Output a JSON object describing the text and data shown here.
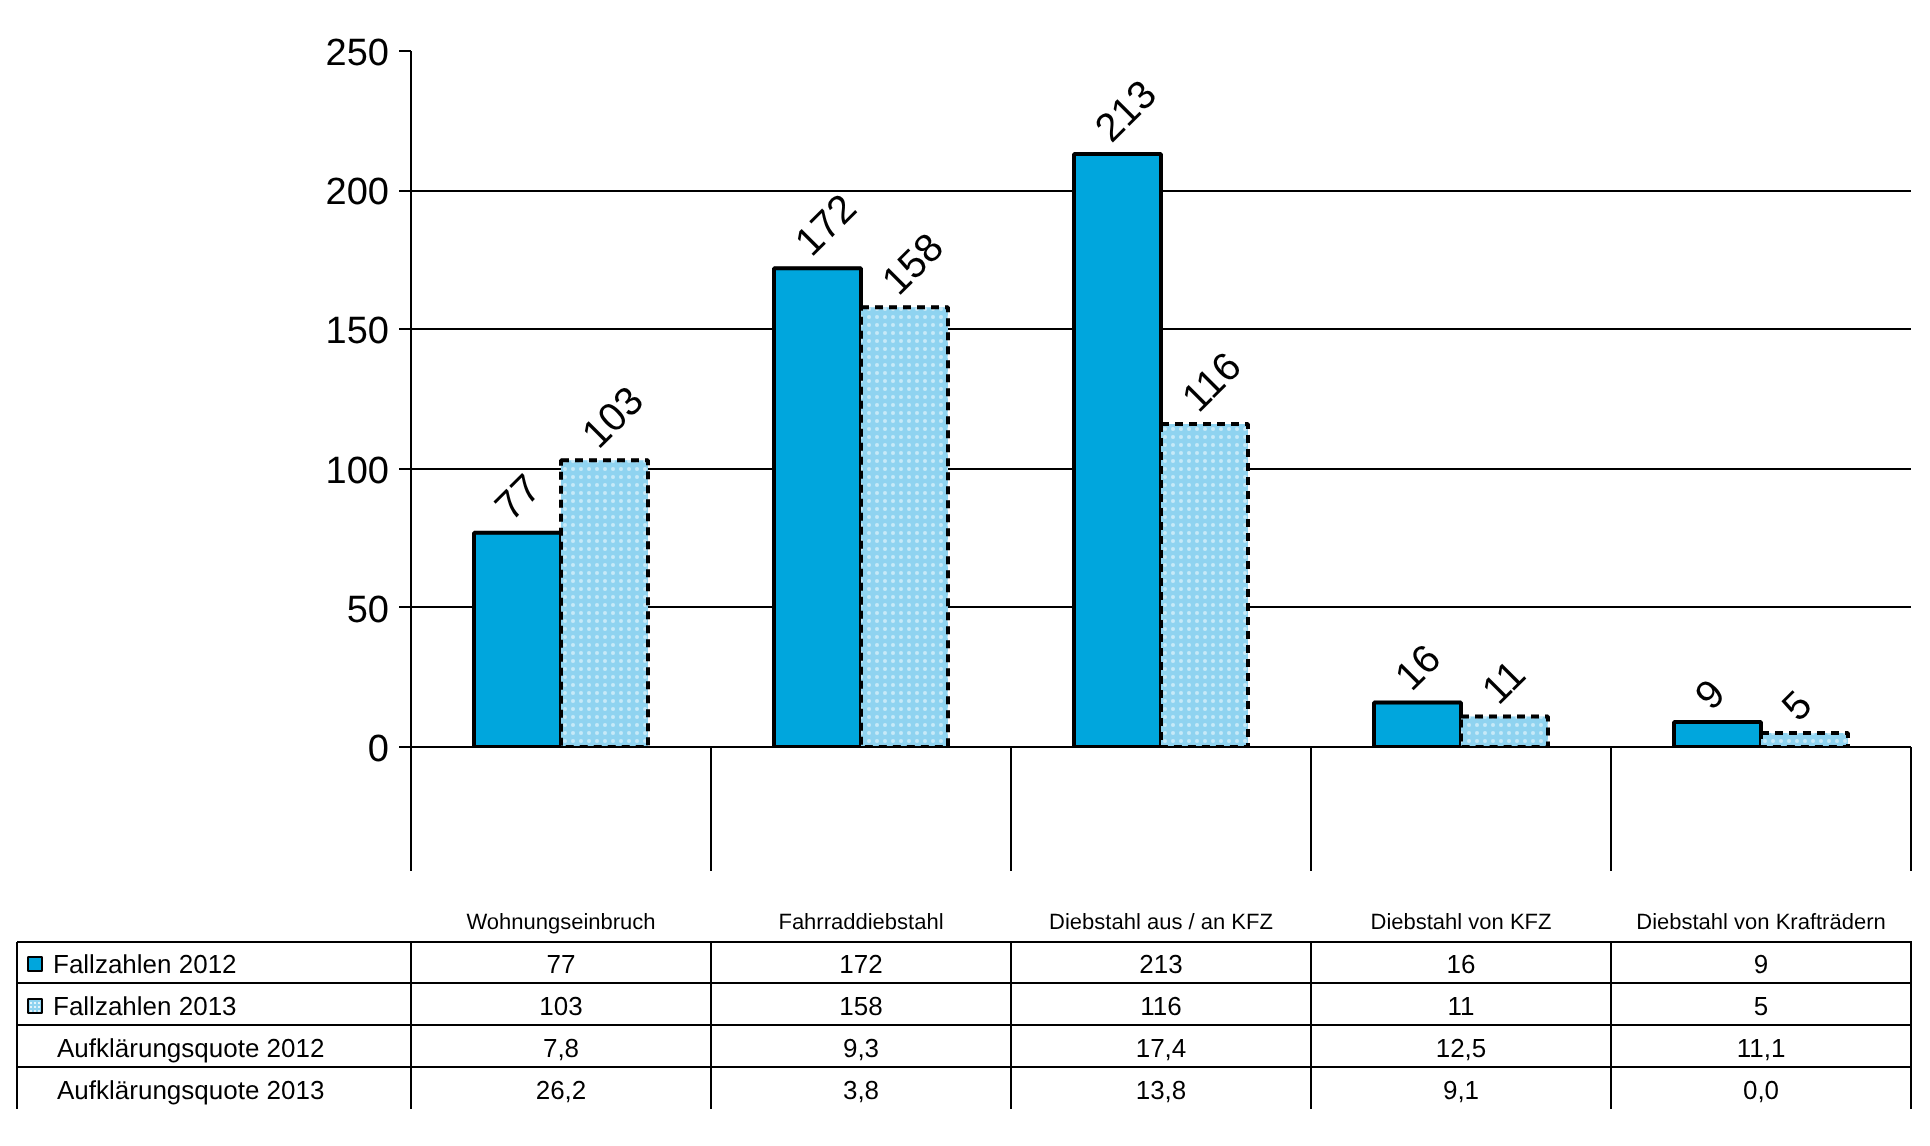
{
  "chart_data": {
    "type": "bar",
    "categories": [
      "Wohnungseinbruch",
      "Fahrraddiebstahl",
      "Diebstahl aus / an KFZ",
      "Diebstahl von KFZ",
      "Diebstahl von Krafträdern"
    ],
    "series": [
      {
        "name": "Fallzahlen 2012",
        "color": "#00a6dd",
        "values": [
          77,
          172,
          213,
          16,
          9
        ]
      },
      {
        "name": "Fallzahlen 2013",
        "color": "#8fd3f0",
        "values": [
          103,
          158,
          116,
          11,
          5
        ]
      }
    ],
    "ylim": [
      0,
      250
    ],
    "yticks": [
      0,
      50,
      100,
      150,
      200,
      250
    ],
    "grid": "y",
    "data_labels": true,
    "legend": "bottom left",
    "annotations": [
      "77",
      "172",
      "213",
      "16",
      "9",
      "103",
      "158",
      "116",
      "11",
      "5",
      "Aufklärungsquote 2012",
      "7,8",
      "9,3",
      "17,4",
      "12,5",
      "11,1",
      "Aufklärungsquote 2013",
      "26,2",
      "3,8",
      "13,8",
      "9,1",
      "0,0"
    ]
  }
}
